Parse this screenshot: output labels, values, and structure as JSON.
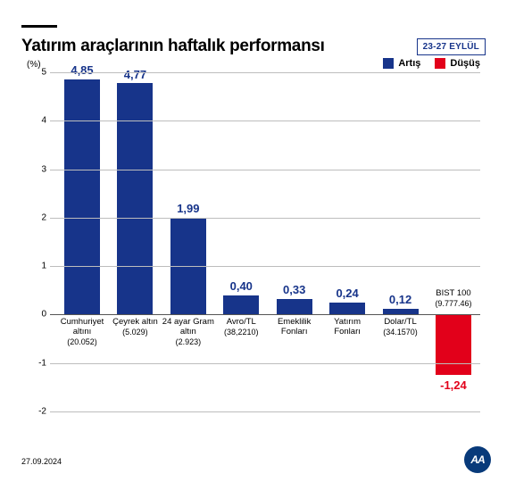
{
  "title": "Yatırım araçlarının haftalık performansı",
  "date_badge": "23-27 EYLÜL",
  "footer_date": "27.09.2024",
  "logo_text": "AA",
  "chart": {
    "type": "bar",
    "y_axis_unit": "(%)",
    "ylim_min": -2,
    "ylim_max": 5,
    "ytick_step": 1,
    "background_color": "#ffffff",
    "grid_color": "#bdbdbd",
    "zero_line_color": "#555555",
    "positive_color": "#17348a",
    "negative_color": "#e2001a",
    "value_fontsize": 13,
    "category_fontsize": 9.5,
    "legend": [
      {
        "label": "Artış",
        "color": "#17348a"
      },
      {
        "label": "Düşüş",
        "color": "#e2001a"
      }
    ],
    "series": [
      {
        "category": "Cumhuriyet altını",
        "sub": "(20.052)",
        "value": 4.85,
        "value_label": "4,85"
      },
      {
        "category": "Çeyrek altın",
        "sub": "(5.029)",
        "value": 4.77,
        "value_label": "4,77"
      },
      {
        "category": "24 ayar Gram altın",
        "sub": "(2.923)",
        "value": 1.99,
        "value_label": "1,99"
      },
      {
        "category": "Avro/TL",
        "sub": "(38,2210)",
        "value": 0.4,
        "value_label": "0,40"
      },
      {
        "category": "Emeklilik Fonları",
        "sub": "",
        "value": 0.33,
        "value_label": "0,33"
      },
      {
        "category": "Yatırım Fonları",
        "sub": "",
        "value": 0.24,
        "value_label": "0,24"
      },
      {
        "category": "Dolar/TL",
        "sub": "(34.1570)",
        "value": 0.12,
        "value_label": "0,12"
      },
      {
        "category": "BIST 100",
        "sub": "(9.777.46)",
        "value": -1.24,
        "value_label": "-1,24"
      }
    ]
  }
}
